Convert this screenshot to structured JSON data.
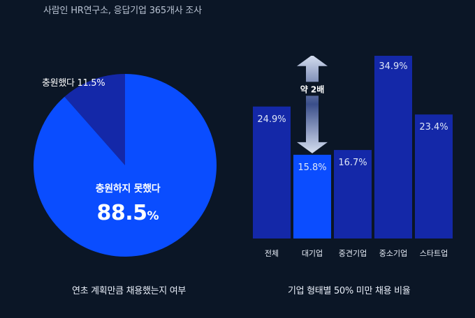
{
  "source_note": "사람인 HR연구소, 응답기업 365개사 조사",
  "colors": {
    "background": "#0b1626",
    "bright": "#0a4dff",
    "dark": "#1428a8",
    "accent_bar": "#0b4dff"
  },
  "left_chart": {
    "caption": "연초 계획만큼 채용했는지 여부",
    "small_label": "충원했다",
    "small_value": "11.5%",
    "big_label": "충원하지 못했다",
    "big_value_num": "88.5",
    "big_value_unit": "%"
  },
  "right_chart": {
    "caption": "기업 형태별 50% 미만 채용 비율",
    "annotation": "약 2배"
  },
  "chart_data": [
    {
      "type": "pie",
      "title": "",
      "categories": [
        "충원하지 못했다",
        "충원했다"
      ],
      "values": [
        88.5,
        11.5
      ],
      "value_labels": [
        "88.5%",
        "11.5%"
      ],
      "colors": [
        "#0a4dff",
        "#1428a8"
      ]
    },
    {
      "type": "bar",
      "title": "",
      "categories": [
        "전체",
        "대기업",
        "중견기업",
        "중소기업",
        "스타트업"
      ],
      "values": [
        24.9,
        15.8,
        16.7,
        34.9,
        23.4
      ],
      "value_labels": [
        "24.9%",
        "15.8%",
        "16.7%",
        "34.9%",
        "23.4%"
      ],
      "highlight_index": 1,
      "annotation": {
        "text": "약 2배",
        "from_category": "대기업",
        "to_category": "중소기업"
      },
      "ylim": [
        0,
        40
      ],
      "grid": false
    }
  ]
}
